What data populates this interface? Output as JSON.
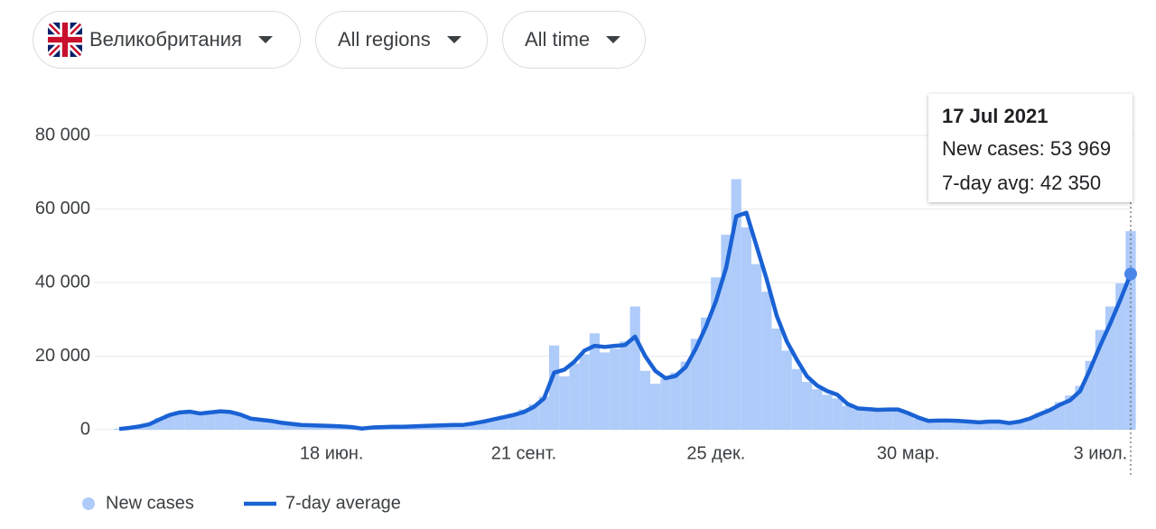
{
  "filters": [
    {
      "label": "Великобритания"
    },
    {
      "label": "All regions"
    },
    {
      "label": "All time"
    }
  ],
  "tooltip": {
    "title": "17 Jul 2021",
    "rows": [
      {
        "label": "New cases:",
        "value": "53 969"
      },
      {
        "label": "7-day avg:",
        "value": "42 350"
      }
    ]
  },
  "chart_data": {
    "type": "bar-line",
    "categories": [
      null,
      null,
      null,
      null,
      null,
      null,
      null,
      null,
      null,
      null,
      null,
      null,
      null,
      null,
      null,
      null,
      null,
      null,
      null,
      null,
      null,
      "18 июн.",
      null,
      null,
      null,
      null,
      null,
      null,
      null,
      null,
      null,
      null,
      null,
      null,
      null,
      null,
      null,
      null,
      null,
      null,
      "21 сент.",
      null,
      null,
      null,
      null,
      null,
      null,
      null,
      null,
      null,
      null,
      null,
      null,
      null,
      null,
      null,
      null,
      null,
      null,
      "25 дек.",
      null,
      null,
      null,
      null,
      null,
      null,
      null,
      null,
      null,
      null,
      null,
      null,
      null,
      null,
      null,
      null,
      null,
      null,
      "30 мар.",
      null,
      null,
      null,
      null,
      null,
      null,
      null,
      null,
      null,
      null,
      null,
      null,
      null,
      null,
      null,
      null,
      null,
      null,
      "3 июл.",
      null,
      null,
      null
    ],
    "series": [
      {
        "name": "New cases",
        "color": "#aecbfa",
        "values": [
          300,
          600,
          1000,
          1700,
          3200,
          4300,
          5000,
          4600,
          4100,
          5200,
          4900,
          4500,
          3800,
          2800,
          2500,
          2200,
          1700,
          1500,
          1200,
          1100,
          1000,
          900,
          800,
          600,
          400,
          700,
          700,
          900,
          800,
          1000,
          1000,
          1200,
          1300,
          1400,
          1200,
          1900,
          2500,
          3000,
          3800,
          4400,
          5500,
          6900,
          9000,
          22900,
          14500,
          18000,
          20500,
          26200,
          21000,
          22000,
          24000,
          33500,
          16000,
          12500,
          13800,
          15500,
          18500,
          24700,
          30500,
          41400,
          53000,
          68100,
          55000,
          45000,
          37500,
          27500,
          21500,
          16500,
          13000,
          11000,
          9500,
          8500,
          6500,
          5500,
          5200,
          5000,
          5700,
          5300,
          4400,
          3000,
          2600,
          2400,
          2700,
          2300,
          2100,
          1900,
          2400,
          2000,
          1700,
          2500,
          3300,
          4600,
          5800,
          7500,
          9300,
          11900,
          18700,
          27100,
          33500,
          39800,
          53969
        ]
      },
      {
        "name": "7-day average",
        "color": "#1a62d4",
        "values": [
          200,
          500,
          900,
          1500,
          2800,
          4000,
          4700,
          4900,
          4400,
          4700,
          5000,
          4800,
          4100,
          3000,
          2700,
          2400,
          1900,
          1600,
          1300,
          1200,
          1100,
          1000,
          900,
          700,
          300,
          600,
          700,
          800,
          800,
          900,
          1000,
          1100,
          1200,
          1300,
          1300,
          1700,
          2200,
          2800,
          3400,
          4000,
          4800,
          6200,
          8500,
          15500,
          16300,
          18500,
          21500,
          22800,
          22500,
          22800,
          23000,
          25300,
          20000,
          16000,
          14000,
          14600,
          17000,
          22000,
          28000,
          35000,
          44000,
          58000,
          59000,
          50000,
          41000,
          31000,
          24000,
          19000,
          14500,
          12000,
          10500,
          9500,
          7000,
          5800,
          5600,
          5400,
          5500,
          5500,
          4500,
          3300,
          2400,
          2500,
          2500,
          2400,
          2200,
          2000,
          2200,
          2200,
          1800,
          2200,
          3000,
          4200,
          5300,
          6800,
          8000,
          10500,
          16500,
          23000,
          29000,
          35500,
          42350
        ]
      }
    ],
    "ylim": [
      0,
      80000
    ],
    "yticks": [
      0,
      {
        "value": 20000,
        "label": "20 000"
      },
      {
        "value": 40000,
        "label": "40 000"
      },
      {
        "value": 60000,
        "label": "60 000"
      },
      {
        "value": 80000,
        "label": "80 000"
      }
    ],
    "grid": true
  }
}
